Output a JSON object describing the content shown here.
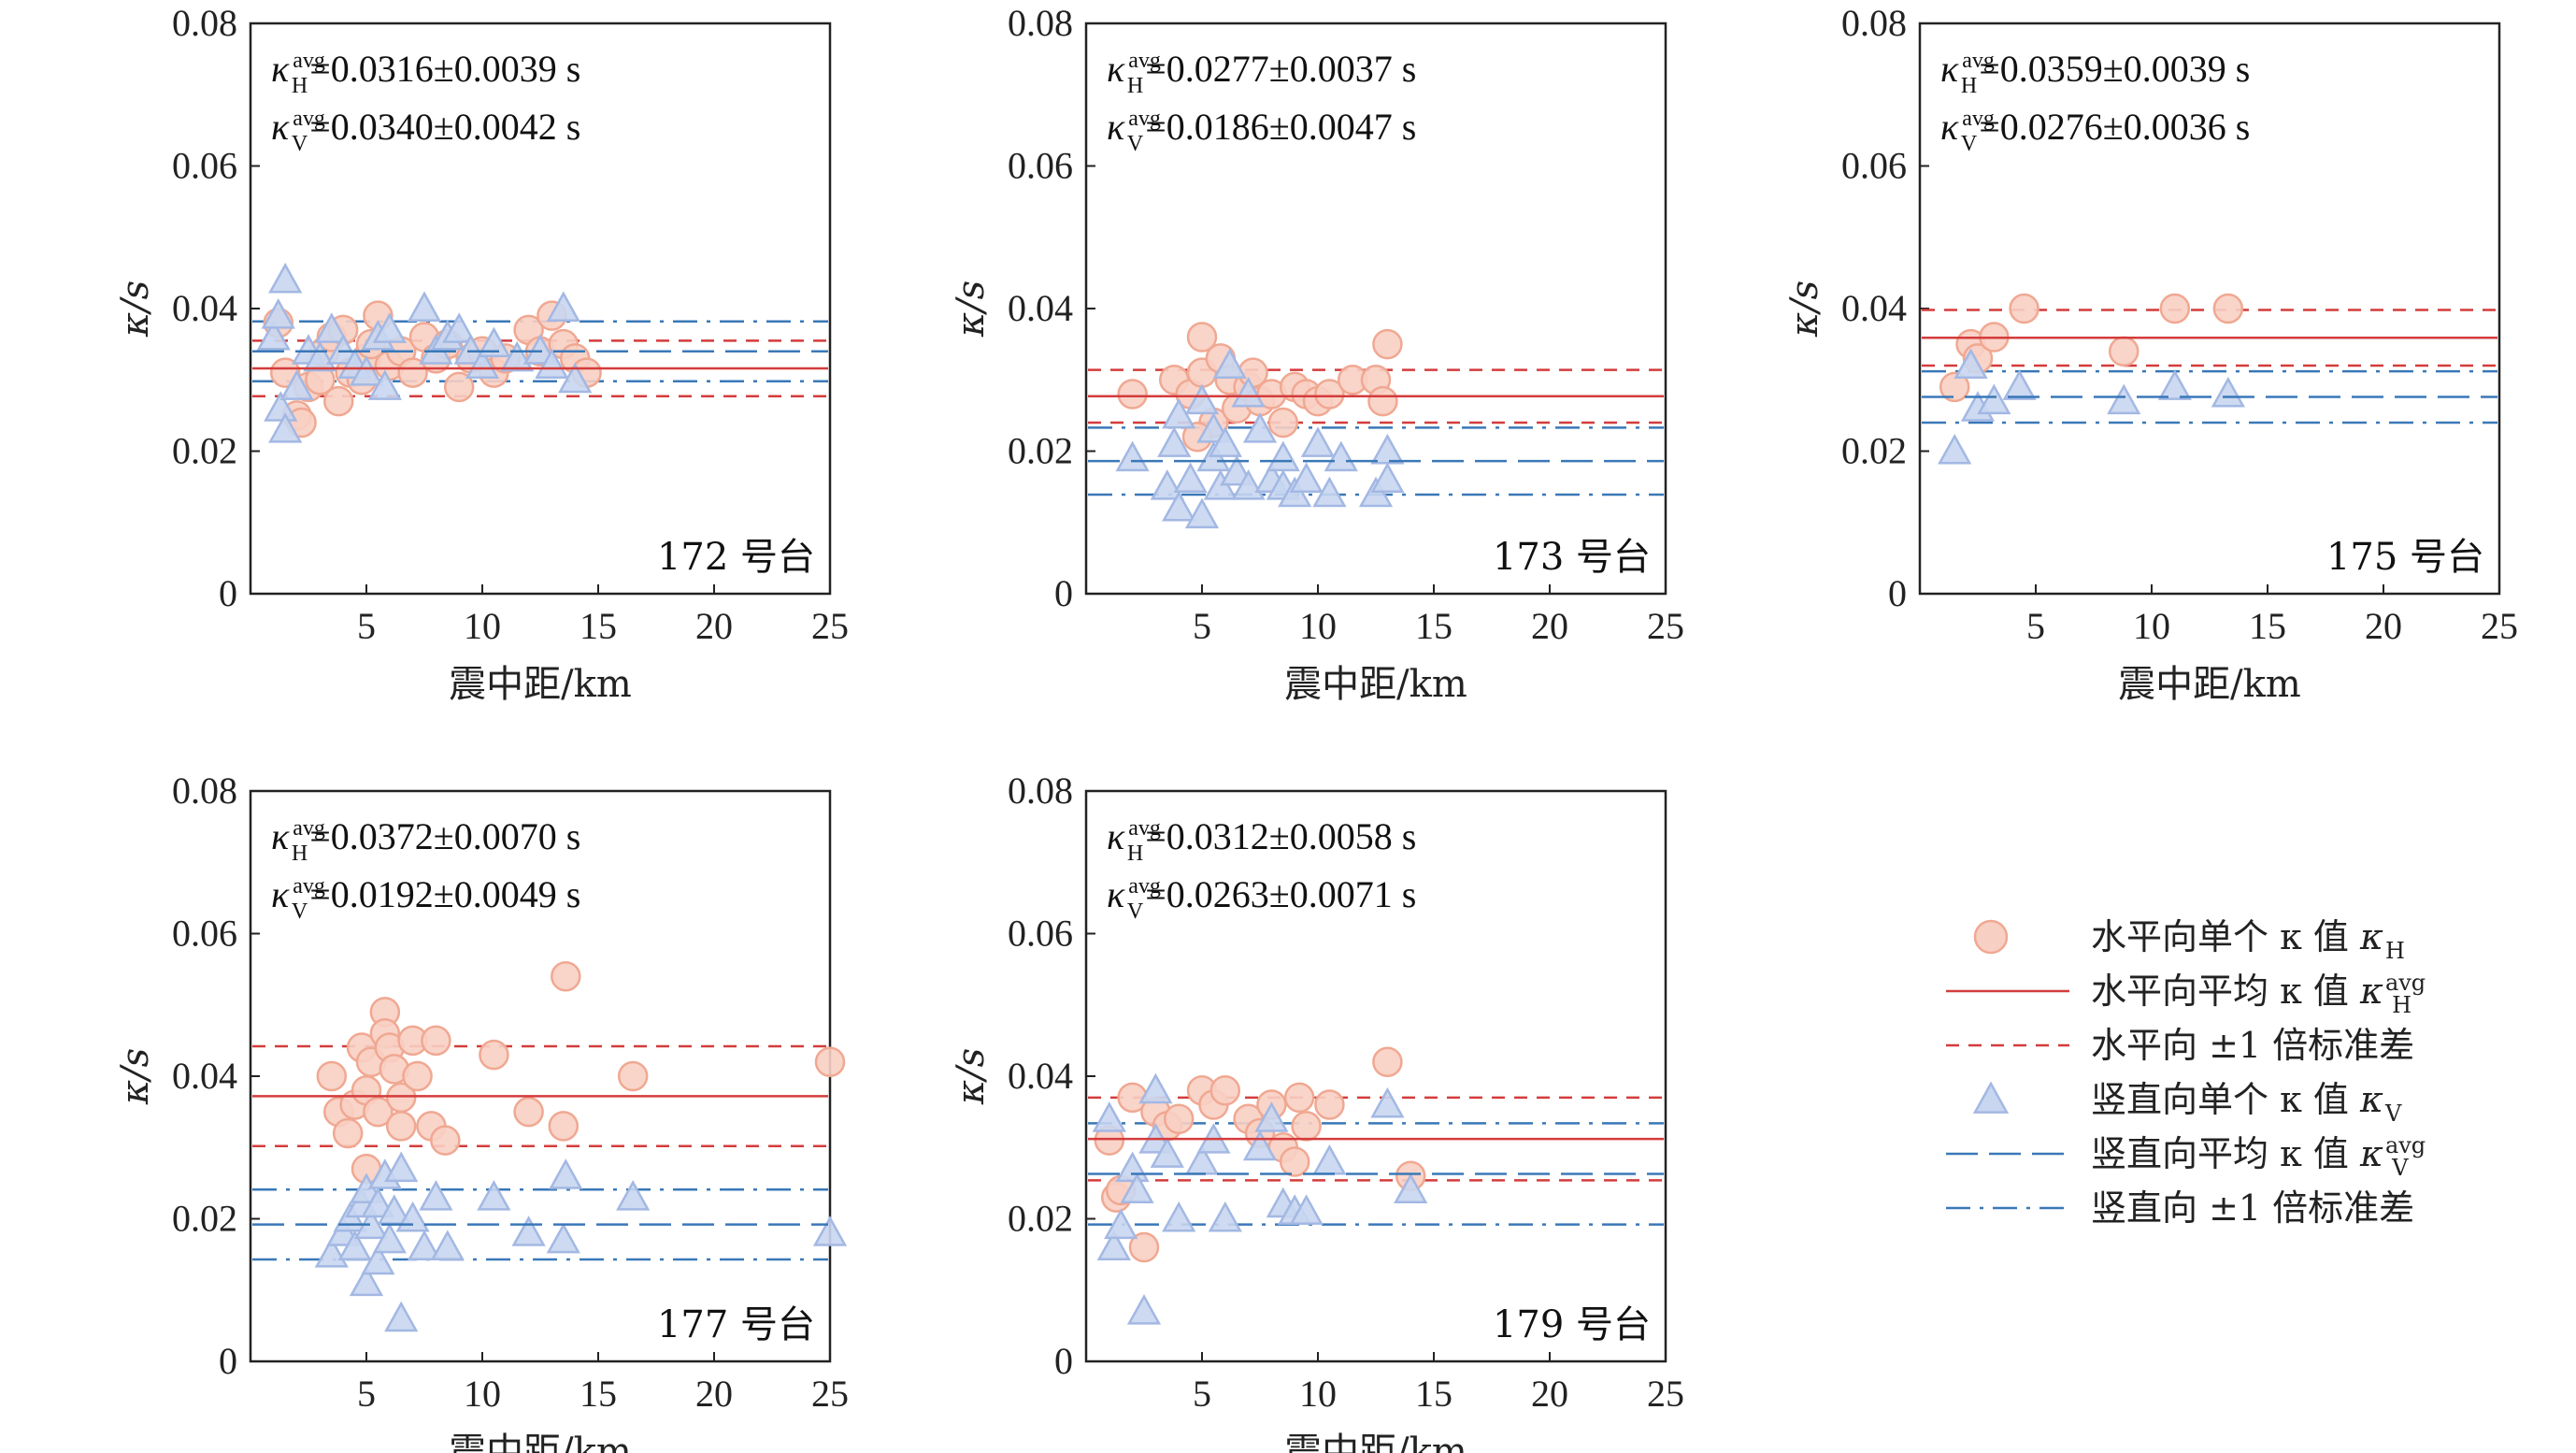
{
  "colors": {
    "h_fill": "#f8cfc3",
    "h_stroke": "#f0a892",
    "h_line": "#d43c3c",
    "v_fill": "#c8d6f0",
    "v_stroke": "#a3b8e3",
    "v_line": "#3a78b8"
  },
  "chart_data": [
    {
      "type": "scatter",
      "station_label": "172 号台",
      "xlabel": "震中距/km",
      "ylabel": "κ/s",
      "xlim": [
        0,
        25
      ],
      "ylim": [
        0,
        0.08
      ],
      "xticks": [
        "5",
        "10",
        "15",
        "20",
        "25"
      ],
      "yticks": [
        "0",
        "0.02",
        "0.04",
        "0.06",
        "0.08"
      ],
      "stats": {
        "h": {
          "sym": "κ",
          "sub": "H",
          "sup": "avg",
          "text": "=0.0316±0.0039 s"
        },
        "v": {
          "sym": "κ",
          "sub": "V",
          "sup": "avg",
          "text": "=0.0340±0.0042 s"
        }
      },
      "h_mean": 0.0316,
      "h_std": 0.0039,
      "v_mean": 0.034,
      "v_std": 0.0042,
      "h_points": [
        [
          1.2,
          0.038
        ],
        [
          1.5,
          0.031
        ],
        [
          2.0,
          0.025
        ],
        [
          2.2,
          0.024
        ],
        [
          2.5,
          0.029
        ],
        [
          3.0,
          0.03
        ],
        [
          3.2,
          0.034
        ],
        [
          3.5,
          0.036
        ],
        [
          3.8,
          0.027
        ],
        [
          4.0,
          0.037
        ],
        [
          4.3,
          0.031
        ],
        [
          4.8,
          0.03
        ],
        [
          5.0,
          0.033
        ],
        [
          5.2,
          0.035
        ],
        [
          5.5,
          0.039
        ],
        [
          6.0,
          0.032
        ],
        [
          6.5,
          0.034
        ],
        [
          7.0,
          0.031
        ],
        [
          7.5,
          0.036
        ],
        [
          8.0,
          0.033
        ],
        [
          8.5,
          0.035
        ],
        [
          9.0,
          0.029
        ],
        [
          9.5,
          0.033
        ],
        [
          10.0,
          0.034
        ],
        [
          10.5,
          0.031
        ],
        [
          11.0,
          0.033
        ],
        [
          12.0,
          0.037
        ],
        [
          12.5,
          0.034
        ],
        [
          13.0,
          0.039
        ],
        [
          13.5,
          0.035
        ],
        [
          14.0,
          0.033
        ],
        [
          14.5,
          0.031
        ]
      ],
      "v_points": [
        [
          1.0,
          0.036
        ],
        [
          1.2,
          0.039
        ],
        [
          1.5,
          0.044
        ],
        [
          1.3,
          0.026
        ],
        [
          1.5,
          0.023
        ],
        [
          2.0,
          0.029
        ],
        [
          2.5,
          0.034
        ],
        [
          3.0,
          0.033
        ],
        [
          3.5,
          0.037
        ],
        [
          4.0,
          0.034
        ],
        [
          4.5,
          0.032
        ],
        [
          5.0,
          0.031
        ],
        [
          5.5,
          0.036
        ],
        [
          5.8,
          0.029
        ],
        [
          6.0,
          0.037
        ],
        [
          7.5,
          0.04
        ],
        [
          8.0,
          0.034
        ],
        [
          8.5,
          0.036
        ],
        [
          9.0,
          0.037
        ],
        [
          9.5,
          0.034
        ],
        [
          10.0,
          0.032
        ],
        [
          10.5,
          0.035
        ],
        [
          11.5,
          0.033
        ],
        [
          12.5,
          0.034
        ],
        [
          13.0,
          0.032
        ],
        [
          13.5,
          0.04
        ],
        [
          14.0,
          0.03
        ]
      ]
    },
    {
      "type": "scatter",
      "station_label": "173 号台",
      "xlabel": "震中距/km",
      "ylabel": "κ/s",
      "xlim": [
        0,
        25
      ],
      "ylim": [
        0,
        0.08
      ],
      "xticks": [
        "5",
        "10",
        "15",
        "20",
        "25"
      ],
      "yticks": [
        "0",
        "0.02",
        "0.04",
        "0.06",
        "0.08"
      ],
      "stats": {
        "h": {
          "sym": "κ",
          "sub": "H",
          "sup": "avg",
          "text": "=0.0277±0.0037 s"
        },
        "v": {
          "sym": "κ",
          "sub": "V",
          "sup": "avg",
          "text": "=0.0186±0.0047 s"
        }
      },
      "h_mean": 0.0277,
      "h_std": 0.0037,
      "v_mean": 0.0186,
      "v_std": 0.0047,
      "h_points": [
        [
          2.0,
          0.028
        ],
        [
          3.8,
          0.03
        ],
        [
          4.5,
          0.028
        ],
        [
          5.0,
          0.036
        ],
        [
          5.0,
          0.031
        ],
        [
          5.5,
          0.024
        ],
        [
          5.8,
          0.033
        ],
        [
          6.2,
          0.03
        ],
        [
          6.5,
          0.026
        ],
        [
          7.0,
          0.029
        ],
        [
          7.2,
          0.031
        ],
        [
          7.5,
          0.027
        ],
        [
          8.0,
          0.028
        ],
        [
          8.5,
          0.024
        ],
        [
          9.0,
          0.029
        ],
        [
          9.5,
          0.028
        ],
        [
          10.0,
          0.027
        ],
        [
          10.5,
          0.028
        ],
        [
          11.5,
          0.03
        ],
        [
          12.5,
          0.03
        ],
        [
          12.8,
          0.027
        ],
        [
          13.0,
          0.035
        ],
        [
          4.8,
          0.022
        ]
      ],
      "v_points": [
        [
          2.0,
          0.019
        ],
        [
          3.5,
          0.015
        ],
        [
          3.8,
          0.021
        ],
        [
          4.0,
          0.025
        ],
        [
          4.0,
          0.012
        ],
        [
          4.5,
          0.016
        ],
        [
          5.0,
          0.011
        ],
        [
          5.0,
          0.027
        ],
        [
          5.5,
          0.019
        ],
        [
          5.5,
          0.023
        ],
        [
          5.8,
          0.015
        ],
        [
          6.0,
          0.021
        ],
        [
          6.2,
          0.032
        ],
        [
          6.5,
          0.017
        ],
        [
          7.0,
          0.015
        ],
        [
          7.0,
          0.028
        ],
        [
          7.5,
          0.023
        ],
        [
          8.0,
          0.016
        ],
        [
          8.5,
          0.015
        ],
        [
          8.5,
          0.019
        ],
        [
          9.0,
          0.014
        ],
        [
          9.5,
          0.016
        ],
        [
          10.0,
          0.021
        ],
        [
          10.5,
          0.014
        ],
        [
          11.0,
          0.019
        ],
        [
          12.5,
          0.014
        ],
        [
          13.0,
          0.016
        ],
        [
          13.0,
          0.02
        ]
      ]
    },
    {
      "type": "scatter",
      "station_label": "175 号台",
      "xlabel": "震中距/km",
      "ylabel": "κ/s",
      "xlim": [
        0,
        25
      ],
      "ylim": [
        0,
        0.08
      ],
      "xticks": [
        "5",
        "10",
        "15",
        "20",
        "25"
      ],
      "yticks": [
        "0",
        "0.02",
        "0.04",
        "0.06",
        "0.08"
      ],
      "stats": {
        "h": {
          "sym": "κ",
          "sub": "H",
          "sup": "avg",
          "text": "=0.0359±0.0039 s"
        },
        "v": {
          "sym": "κ",
          "sub": "V",
          "sup": "avg",
          "text": "=0.0276±0.0036 s"
        }
      },
      "h_mean": 0.0359,
      "h_std": 0.0039,
      "v_mean": 0.0276,
      "v_std": 0.0036,
      "h_points": [
        [
          1.5,
          0.029
        ],
        [
          2.2,
          0.035
        ],
        [
          2.5,
          0.033
        ],
        [
          3.2,
          0.036
        ],
        [
          4.5,
          0.04
        ],
        [
          8.8,
          0.034
        ],
        [
          11.0,
          0.04
        ],
        [
          13.3,
          0.04
        ]
      ],
      "v_points": [
        [
          1.5,
          0.02
        ],
        [
          2.2,
          0.032
        ],
        [
          2.5,
          0.026
        ],
        [
          3.2,
          0.027
        ],
        [
          4.3,
          0.029
        ],
        [
          8.8,
          0.027
        ],
        [
          11.0,
          0.029
        ],
        [
          13.3,
          0.028
        ]
      ]
    },
    {
      "type": "scatter",
      "station_label": "177 号台",
      "xlabel": "震中距/km",
      "ylabel": "κ/s",
      "xlim": [
        0,
        25
      ],
      "ylim": [
        0,
        0.08
      ],
      "xticks": [
        "5",
        "10",
        "15",
        "20",
        "25"
      ],
      "yticks": [
        "0",
        "0.02",
        "0.04",
        "0.06",
        "0.08"
      ],
      "stats": {
        "h": {
          "sym": "κ",
          "sub": "H",
          "sup": "avg",
          "text": "=0.0372±0.0070 s"
        },
        "v": {
          "sym": "κ",
          "sub": "V",
          "sup": "avg",
          "text": "=0.0192±0.0049 s"
        }
      },
      "h_mean": 0.0372,
      "h_std": 0.007,
      "v_mean": 0.0192,
      "v_std": 0.0049,
      "h_points": [
        [
          3.5,
          0.04
        ],
        [
          3.8,
          0.035
        ],
        [
          4.2,
          0.032
        ],
        [
          4.5,
          0.036
        ],
        [
          4.8,
          0.044
        ],
        [
          5.0,
          0.038
        ],
        [
          5.0,
          0.027
        ],
        [
          5.2,
          0.042
        ],
        [
          5.5,
          0.035
        ],
        [
          5.8,
          0.049
        ],
        [
          5.8,
          0.046
        ],
        [
          6.0,
          0.044
        ],
        [
          6.2,
          0.041
        ],
        [
          6.5,
          0.037
        ],
        [
          6.5,
          0.033
        ],
        [
          7.0,
          0.045
        ],
        [
          7.2,
          0.04
        ],
        [
          7.8,
          0.033
        ],
        [
          8.0,
          0.045
        ],
        [
          8.4,
          0.031
        ],
        [
          10.5,
          0.043
        ],
        [
          12.0,
          0.035
        ],
        [
          13.5,
          0.033
        ],
        [
          13.6,
          0.054
        ],
        [
          16.5,
          0.04
        ],
        [
          25.0,
          0.042
        ]
      ],
      "v_points": [
        [
          3.5,
          0.015
        ],
        [
          4.0,
          0.018
        ],
        [
          4.3,
          0.02
        ],
        [
          4.5,
          0.016
        ],
        [
          4.8,
          0.022
        ],
        [
          5.0,
          0.011
        ],
        [
          5.0,
          0.024
        ],
        [
          5.2,
          0.019
        ],
        [
          5.5,
          0.014
        ],
        [
          5.5,
          0.022
        ],
        [
          5.8,
          0.026
        ],
        [
          6.0,
          0.017
        ],
        [
          6.2,
          0.021
        ],
        [
          6.5,
          0.027
        ],
        [
          6.5,
          0.006
        ],
        [
          7.0,
          0.02
        ],
        [
          7.5,
          0.016
        ],
        [
          8.0,
          0.023
        ],
        [
          8.5,
          0.016
        ],
        [
          10.5,
          0.023
        ],
        [
          12.0,
          0.018
        ],
        [
          13.5,
          0.017
        ],
        [
          13.6,
          0.026
        ],
        [
          16.5,
          0.023
        ],
        [
          25.0,
          0.018
        ]
      ]
    },
    {
      "type": "scatter",
      "station_label": "179 号台",
      "xlabel": "震中距/km",
      "ylabel": "κ/s",
      "xlim": [
        0,
        25
      ],
      "ylim": [
        0,
        0.08
      ],
      "xticks": [
        "5",
        "10",
        "15",
        "20",
        "25"
      ],
      "yticks": [
        "0",
        "0.02",
        "0.04",
        "0.06",
        "0.08"
      ],
      "stats": {
        "h": {
          "sym": "κ",
          "sub": "H",
          "sup": "avg",
          "text": "=0.0312±0.0058 s"
        },
        "v": {
          "sym": "κ",
          "sub": "V",
          "sup": "avg",
          "text": "=0.0263±0.0071 s"
        }
      },
      "h_mean": 0.0312,
      "h_std": 0.0058,
      "v_mean": 0.0263,
      "v_std": 0.0071,
      "h_points": [
        [
          1.0,
          0.031
        ],
        [
          1.3,
          0.023
        ],
        [
          1.5,
          0.024
        ],
        [
          2.0,
          0.037
        ],
        [
          2.5,
          0.016
        ],
        [
          3.0,
          0.035
        ],
        [
          3.5,
          0.033
        ],
        [
          4.0,
          0.034
        ],
        [
          5.0,
          0.038
        ],
        [
          5.5,
          0.036
        ],
        [
          6.0,
          0.038
        ],
        [
          7.0,
          0.034
        ],
        [
          7.5,
          0.032
        ],
        [
          8.0,
          0.036
        ],
        [
          8.5,
          0.03
        ],
        [
          9.0,
          0.028
        ],
        [
          9.2,
          0.037
        ],
        [
          9.5,
          0.033
        ],
        [
          10.5,
          0.036
        ],
        [
          13.0,
          0.042
        ],
        [
          14.0,
          0.026
        ]
      ],
      "v_points": [
        [
          1.0,
          0.034
        ],
        [
          1.2,
          0.016
        ],
        [
          1.5,
          0.019
        ],
        [
          2.0,
          0.027
        ],
        [
          2.2,
          0.024
        ],
        [
          2.5,
          0.007
        ],
        [
          3.0,
          0.038
        ],
        [
          3.0,
          0.031
        ],
        [
          3.5,
          0.029
        ],
        [
          4.0,
          0.02
        ],
        [
          5.0,
          0.028
        ],
        [
          5.5,
          0.031
        ],
        [
          6.0,
          0.02
        ],
        [
          7.5,
          0.03
        ],
        [
          8.0,
          0.034
        ],
        [
          8.5,
          0.022
        ],
        [
          9.0,
          0.021
        ],
        [
          9.5,
          0.021
        ],
        [
          10.5,
          0.028
        ],
        [
          13.0,
          0.036
        ],
        [
          14.0,
          0.024
        ]
      ]
    }
  ],
  "legend": {
    "items": [
      {
        "kind": "circle",
        "label": "水平向单个 κ 值",
        "sym": "κ",
        "sub": "H",
        "sup": ""
      },
      {
        "kind": "solid",
        "label": "水平向平均 κ 值",
        "sym": "κ",
        "sub": "H",
        "sup": "avg"
      },
      {
        "kind": "dash",
        "label": "水平向 ±1 倍标准差",
        "sym": "",
        "sub": "",
        "sup": ""
      },
      {
        "kind": "triangle",
        "label": "竖直向单个 κ 值",
        "sym": "κ",
        "sub": "V",
        "sup": ""
      },
      {
        "kind": "longdash",
        "label": "竖直向平均 κ 值",
        "sym": "κ",
        "sub": "V",
        "sup": "avg"
      },
      {
        "kind": "dashdot",
        "label": "竖直向 ±1 倍标准差",
        "sym": "",
        "sub": "",
        "sup": ""
      }
    ]
  }
}
